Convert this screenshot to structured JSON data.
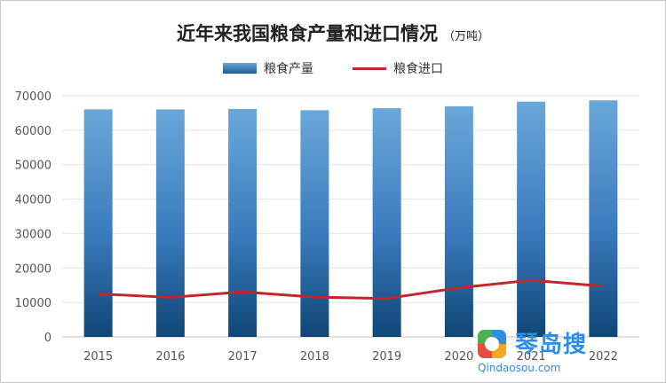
{
  "chart_data": {
    "type": "bar",
    "title": "近年来我国粮食产量和进口情况",
    "unit": "（万吨）",
    "categories": [
      "2015",
      "2016",
      "2017",
      "2018",
      "2019",
      "2020",
      "2021",
      "2022"
    ],
    "ylim": [
      0,
      70000
    ],
    "yticks": [
      "0",
      "10000",
      "20000",
      "30000",
      "40000",
      "50000",
      "60000",
      "70000"
    ],
    "grid": true,
    "legend_position": "top",
    "series": [
      {
        "name": "粮食产量",
        "type": "bar",
        "color": "#2e6fb0",
        "values": [
          66060,
          66044,
          66161,
          65789,
          66384,
          66949,
          68285,
          68653
        ]
      },
      {
        "name": "粮食进口",
        "type": "line",
        "color": "#c0262c",
        "values": [
          12477,
          11468,
          13062,
          11555,
          11144,
          14262,
          16454,
          14687
        ]
      }
    ]
  },
  "watermark": {
    "name": "琴岛搜",
    "url": "Qindaosou.com"
  }
}
